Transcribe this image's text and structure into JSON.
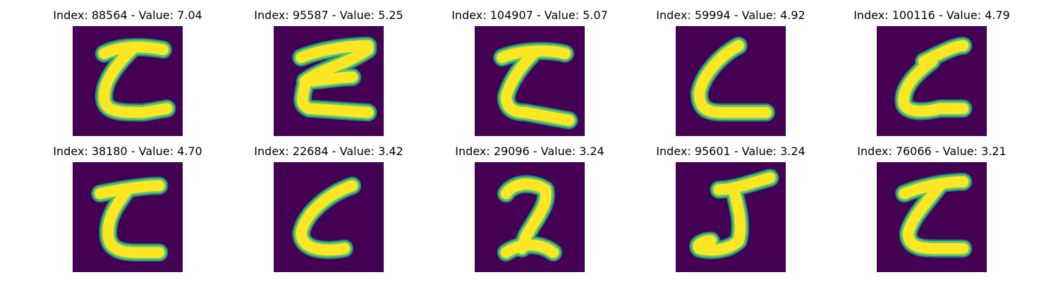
{
  "colors": {
    "background": "#440154",
    "edge_dark": "#21918c",
    "edge_light": "#5ec962",
    "core": "#fde725"
  },
  "panels": [
    {
      "title": "Index: 88564 - Value: 7.04",
      "glyph_name": "digit-z-image"
    },
    {
      "title": "Index: 95587 - Value: 5.25",
      "glyph_name": "digit-z-image"
    },
    {
      "title": "Index: 104907 - Value: 5.07",
      "glyph_name": "digit-z-image"
    },
    {
      "title": "Index: 59994 - Value: 4.92",
      "glyph_name": "digit-l-image"
    },
    {
      "title": "Index: 100116 - Value: 4.79",
      "glyph_name": "digit-z-image"
    },
    {
      "title": "Index: 38180 - Value: 4.70",
      "glyph_name": "digit-z-image"
    },
    {
      "title": "Index: 22684 - Value: 3.42",
      "glyph_name": "digit-c-image"
    },
    {
      "title": "Index: 29096 - Value: 3.24",
      "glyph_name": "digit-2-image"
    },
    {
      "title": "Index: 95601 - Value: 3.24",
      "glyph_name": "digit-j-image"
    },
    {
      "title": "Index: 76066 - Value: 3.21",
      "glyph_name": "digit-z-image"
    }
  ]
}
